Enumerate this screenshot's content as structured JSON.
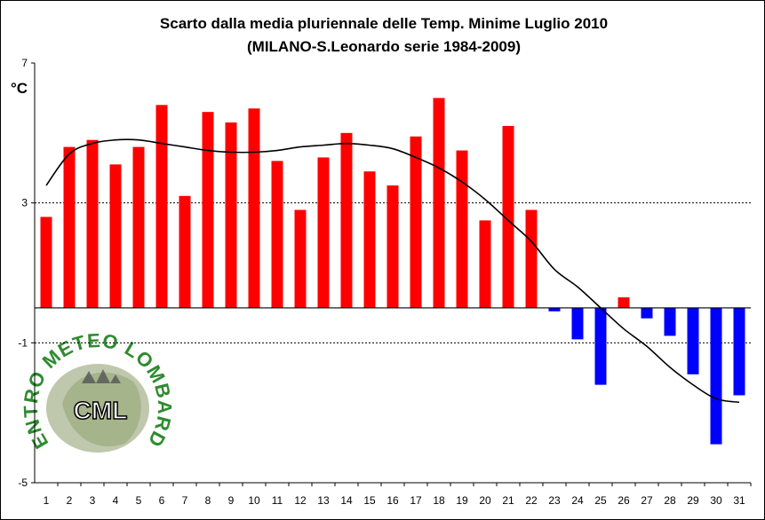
{
  "chart_data": {
    "type": "bar",
    "title": "Scarto dalla media pluriennale delle Temp. Minime Luglio 2010",
    "subtitle": "(MILANO-S.Leonardo serie 1984-2009)",
    "ylabel": "°C",
    "ylim": [
      -5,
      7
    ],
    "yticks": [
      7,
      3,
      -1,
      -5
    ],
    "categories": [
      "1",
      "2",
      "3",
      "4",
      "5",
      "6",
      "7",
      "8",
      "9",
      "10",
      "11",
      "12",
      "13",
      "14",
      "15",
      "16",
      "17",
      "18",
      "19",
      "20",
      "21",
      "22",
      "23",
      "24",
      "25",
      "26",
      "27",
      "28",
      "29",
      "30",
      "31"
    ],
    "values": [
      2.6,
      4.6,
      4.8,
      4.1,
      4.6,
      5.8,
      3.2,
      5.6,
      5.3,
      5.7,
      4.2,
      2.8,
      4.3,
      5.0,
      3.9,
      3.5,
      4.9,
      6.0,
      4.5,
      2.5,
      5.2,
      2.8,
      -0.1,
      -0.9,
      -2.2,
      0.3,
      -0.3,
      -0.8,
      -1.9,
      -3.9,
      -2.5
    ],
    "positive_color": "#ff0000",
    "negative_color": "#0000ff",
    "trend_line": {
      "type": "polynomial",
      "x": [
        1,
        2,
        3,
        4,
        5,
        6,
        7,
        8,
        9,
        10,
        11,
        12,
        13,
        14,
        15,
        16,
        17,
        18,
        19,
        20,
        21,
        22,
        23,
        24,
        25,
        26,
        27,
        28,
        29,
        30,
        31
      ],
      "y": [
        3.5,
        4.4,
        4.7,
        4.8,
        4.8,
        4.7,
        4.6,
        4.5,
        4.45,
        4.45,
        4.5,
        4.6,
        4.65,
        4.7,
        4.65,
        4.55,
        4.3,
        4.0,
        3.6,
        3.1,
        2.5,
        1.9,
        1.1,
        0.6,
        0.0,
        -0.6,
        -1.1,
        -1.7,
        -2.2,
        -2.6,
        -2.7
      ]
    },
    "grid": "dashed at 3 and -1",
    "legend": "none"
  },
  "logo": {
    "arc_text": "CENTRO METEO LOMBARDO",
    "initials": "CML"
  }
}
